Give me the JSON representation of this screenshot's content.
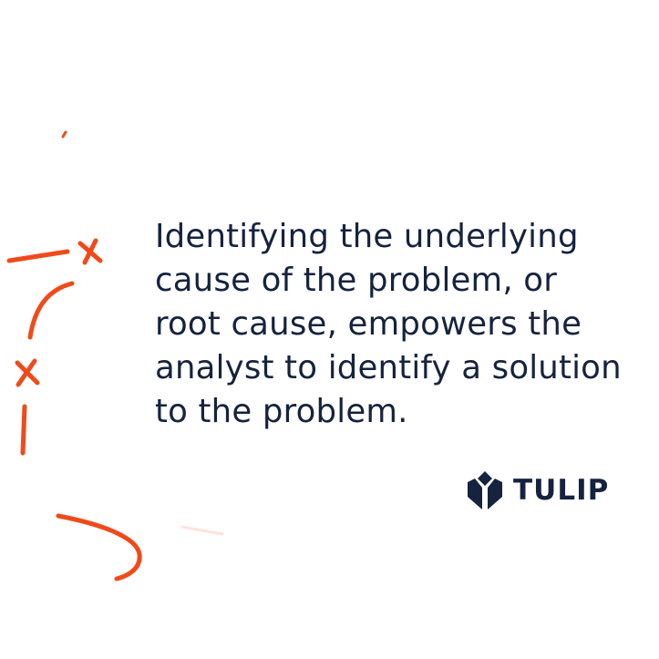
{
  "quote": {
    "lines": [
      "Identifying the underlying",
      "cause of the problem, or",
      "root cause, empowers the",
      "analyst to identify a solution",
      "to the problem."
    ]
  },
  "brand": {
    "name": "TULIP",
    "logo_icon": "tulip-logo-icon"
  },
  "colors": {
    "text": "#16233f",
    "accent": "#f04a1a",
    "background": "#ffffff"
  },
  "doodle": {
    "icons": [
      "x-mark-icon",
      "arc-stroke",
      "dash-stroke",
      "hook-stroke"
    ]
  }
}
